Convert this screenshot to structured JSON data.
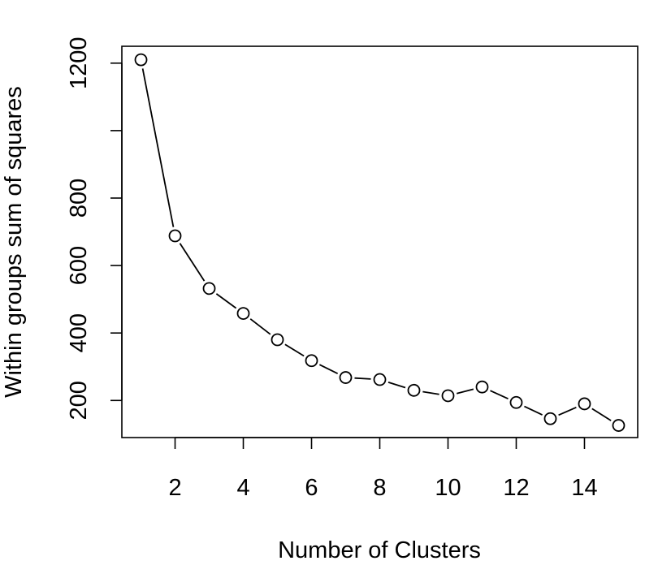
{
  "chart_data": {
    "type": "line",
    "xlabel": "Number of Clusters",
    "ylabel": "Within groups sum of squares",
    "xlim": [
      0.44,
      15.56
    ],
    "ylim": [
      90,
      1250
    ],
    "x_ticks": [
      2,
      4,
      6,
      8,
      10,
      12,
      14
    ],
    "y_ticks": [
      200,
      400,
      600,
      800,
      1000,
      1200
    ],
    "y_tick_labels": [
      "200",
      "400",
      "600",
      "800",
      "",
      "1200"
    ],
    "grid": false,
    "legend": "none",
    "marker": "open-circle",
    "line_style": "solid",
    "color": "#000000",
    "series": [
      {
        "x": [
          1,
          2,
          3,
          4,
          5,
          6,
          7,
          8,
          9,
          10,
          11,
          12,
          13,
          14,
          15
        ],
        "y": [
          1210,
          688,
          532,
          458,
          380,
          318,
          268,
          262,
          230,
          214,
          240,
          194,
          146,
          190,
          126
        ]
      }
    ]
  }
}
